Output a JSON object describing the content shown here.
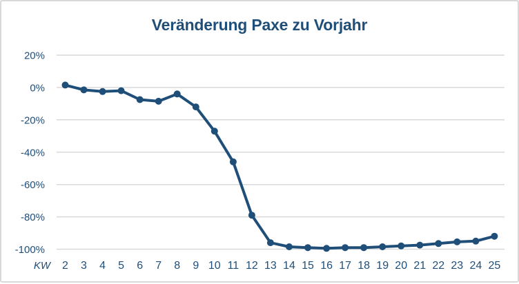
{
  "style": {
    "accent": "#1F4E79",
    "line": "#1F4E79",
    "grid": "#D9D9D9",
    "border": "#D9D9D9",
    "background": "#FFFFFF"
  },
  "chart_data": {
    "type": "line",
    "title": "Veränderung Paxe zu Vorjahr",
    "xlabel": "KW",
    "ylabel": "",
    "x": [
      2,
      3,
      4,
      5,
      6,
      7,
      8,
      9,
      10,
      11,
      12,
      13,
      14,
      15,
      16,
      17,
      18,
      19,
      20,
      21,
      22,
      23,
      24,
      25
    ],
    "series": [
      {
        "name": "Veränderung Paxe zu Vorjahr",
        "values": [
          1.5,
          -1.5,
          -2.5,
          -2,
          -7.5,
          -8.5,
          -4,
          -12,
          -27,
          -46,
          -79,
          -96,
          -98.5,
          -99,
          -99.5,
          -99,
          -99,
          -98.5,
          -98,
          -97.5,
          -96.5,
          -95.5,
          -95,
          -92
        ]
      }
    ],
    "y_ticks": [
      20,
      0,
      -20,
      -40,
      -60,
      -80,
      -100
    ],
    "y_tick_labels": [
      "20%",
      "0%",
      "-20%",
      "-40%",
      "-60%",
      "-80%",
      "-100%"
    ],
    "ylim": [
      -100,
      20
    ],
    "grid": "horizontal",
    "legend": "none",
    "marker": "circle"
  }
}
